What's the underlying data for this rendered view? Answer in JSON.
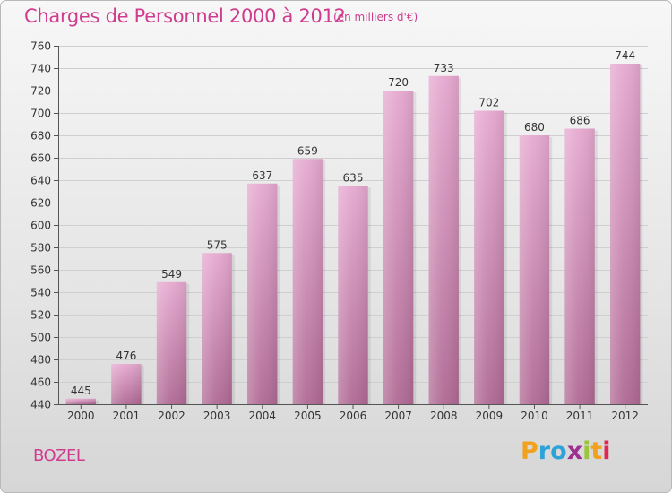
{
  "header": {
    "title": "Charges de Personnel 2000 à 2012",
    "subtitle": "(en milliers d'€)"
  },
  "footer": {
    "commune": "BOZEL",
    "logo_letters": [
      "P",
      "r",
      "o",
      "x",
      "i",
      "t",
      "i"
    ],
    "logo_colors": [
      "#f0a21e",
      "#2fa3d8",
      "#2fa3d8",
      "#9c2f8f",
      "#9bc63a",
      "#f0a21e",
      "#e2264f"
    ]
  },
  "chart_data": {
    "type": "bar",
    "categories": [
      "2000",
      "2001",
      "2002",
      "2003",
      "2004",
      "2005",
      "2006",
      "2007",
      "2008",
      "2009",
      "2010",
      "2011",
      "2012"
    ],
    "values": [
      445,
      476,
      549,
      575,
      637,
      659,
      635,
      720,
      733,
      702,
      680,
      686,
      744
    ],
    "data_labels": [
      "445",
      "476",
      "549",
      "575",
      "637",
      "659",
      "635",
      "720",
      "733",
      "702",
      "680",
      "686",
      "744"
    ],
    "ylim": [
      440,
      760
    ],
    "yticks": [
      440,
      460,
      480,
      500,
      520,
      540,
      560,
      580,
      600,
      620,
      640,
      660,
      680,
      700,
      720,
      740,
      760
    ],
    "ytick_labels": [
      "440",
      "460",
      "480",
      "500",
      "520",
      "540",
      "560",
      "580",
      "600",
      "620",
      "640",
      "660",
      "680",
      "700",
      "720",
      "740",
      "760"
    ],
    "grid": true,
    "bar_color_top": "#e6a9d0",
    "bar_color_bottom": "#b06a94",
    "text_color": "#cf3c8e"
  }
}
